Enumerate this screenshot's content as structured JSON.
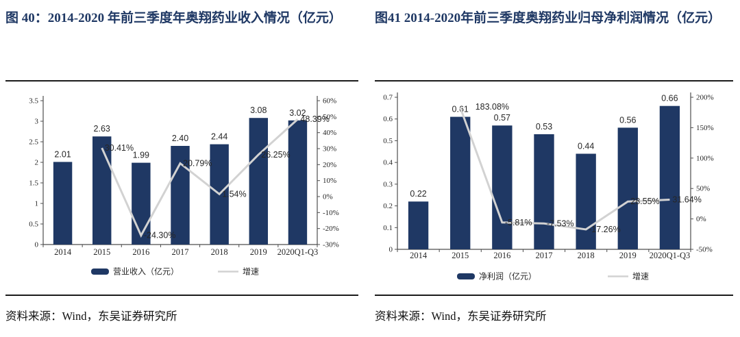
{
  "colors": {
    "bar": "#1F3864",
    "line": "#D2D2D2",
    "title": "#1F3864",
    "axis": "#4d4d4d",
    "rule": "#1a1a1a"
  },
  "chart_data": [
    {
      "type": "bar",
      "title": "图 40：2014-2020 年前三季度年奥翔药业收入情况（亿元）",
      "source": "资料来源：Wind，东吴证券研究所",
      "categories": [
        "2014",
        "2015",
        "2016",
        "2017",
        "2018",
        "2019",
        "2020Q1-Q3"
      ],
      "series": [
        {
          "name": "营业收入（亿元）",
          "type": "bar",
          "axis": "left",
          "values": [
            2.01,
            2.63,
            1.99,
            2.4,
            2.44,
            3.08,
            3.02
          ]
        },
        {
          "name": "增速",
          "type": "line",
          "axis": "right",
          "values": [
            null,
            30.41,
            -24.3,
            20.79,
            1.54,
            26.25,
            48.39
          ]
        }
      ],
      "left_axis": {
        "min": 0,
        "max": 3.5,
        "tick_values": [
          0,
          0.5,
          1,
          1.5,
          2,
          2.5,
          3,
          3.5
        ],
        "tick_labels": [
          "0",
          "0.5",
          "1",
          "1.5",
          "2",
          "2.5",
          "3",
          "3.5"
        ]
      },
      "right_axis": {
        "min": -30,
        "max": 60,
        "tick_values": [
          -30,
          -20,
          -10,
          0,
          10,
          20,
          30,
          40,
          50,
          60
        ],
        "tick_labels": [
          "-30%",
          "-20%",
          "-10%",
          "0%",
          "10%",
          "20%",
          "30%",
          "40%",
          "50%",
          "60%"
        ]
      },
      "grid": "off",
      "legend_position": "bottom"
    },
    {
      "type": "bar",
      "title": "图41 2014-2020年前三季度奥翔药业归母净利润情况（亿元）",
      "source": "资料来源：Wind，东吴证券研究所",
      "categories": [
        "2014",
        "2015",
        "2016",
        "2017",
        "2018",
        "2019",
        "2020Q1-Q3"
      ],
      "series": [
        {
          "name": "净利润（亿元）",
          "type": "bar",
          "axis": "left",
          "values": [
            0.22,
            0.61,
            0.57,
            0.53,
            0.44,
            0.56,
            0.66
          ]
        },
        {
          "name": "增速",
          "type": "line",
          "axis": "right",
          "values": [
            null,
            183.08,
            -5.81,
            -7.53,
            -17.26,
            28.55,
            31.64
          ]
        }
      ],
      "left_axis": {
        "min": 0,
        "max": 0.7,
        "tick_values": [
          0,
          0.1,
          0.2,
          0.3,
          0.4,
          0.5,
          0.6,
          0.7
        ],
        "tick_labels": [
          "0",
          "0.1",
          "0.2",
          "0.3",
          "0.4",
          "0.5",
          "0.6",
          "0.7"
        ]
      },
      "right_axis": {
        "min": -50,
        "max": 200,
        "tick_values": [
          -50,
          0,
          50,
          100,
          150,
          200
        ],
        "tick_labels": [
          "-50%",
          "0%",
          "50%",
          "100%",
          "150%",
          "200%"
        ]
      },
      "grid": "off",
      "legend_position": "bottom"
    }
  ]
}
